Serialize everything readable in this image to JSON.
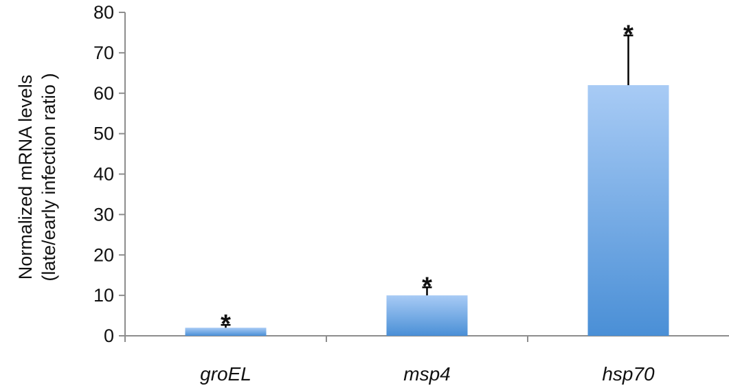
{
  "chart_data": {
    "type": "bar",
    "categories": [
      "groEL",
      "msp4",
      "hsp70"
    ],
    "values": [
      2,
      10,
      62
    ],
    "error_plus": [
      0.7,
      2,
      12.3
    ],
    "significance": [
      "*",
      "*",
      "*"
    ],
    "ylabel_lines": [
      "Normalized mRNA levels",
      "(late/early infection ratio )"
    ],
    "xlabel": "",
    "ylim": [
      0,
      80
    ],
    "yticks": [
      0,
      10,
      20,
      30,
      40,
      50,
      60,
      70,
      80
    ],
    "grid": false,
    "legend": "none",
    "colors": {
      "bar_top": "#a8cbf5",
      "bar_bottom": "#4a8fd6",
      "axis": "#8c8c8c",
      "error_bar": "#000000"
    }
  }
}
